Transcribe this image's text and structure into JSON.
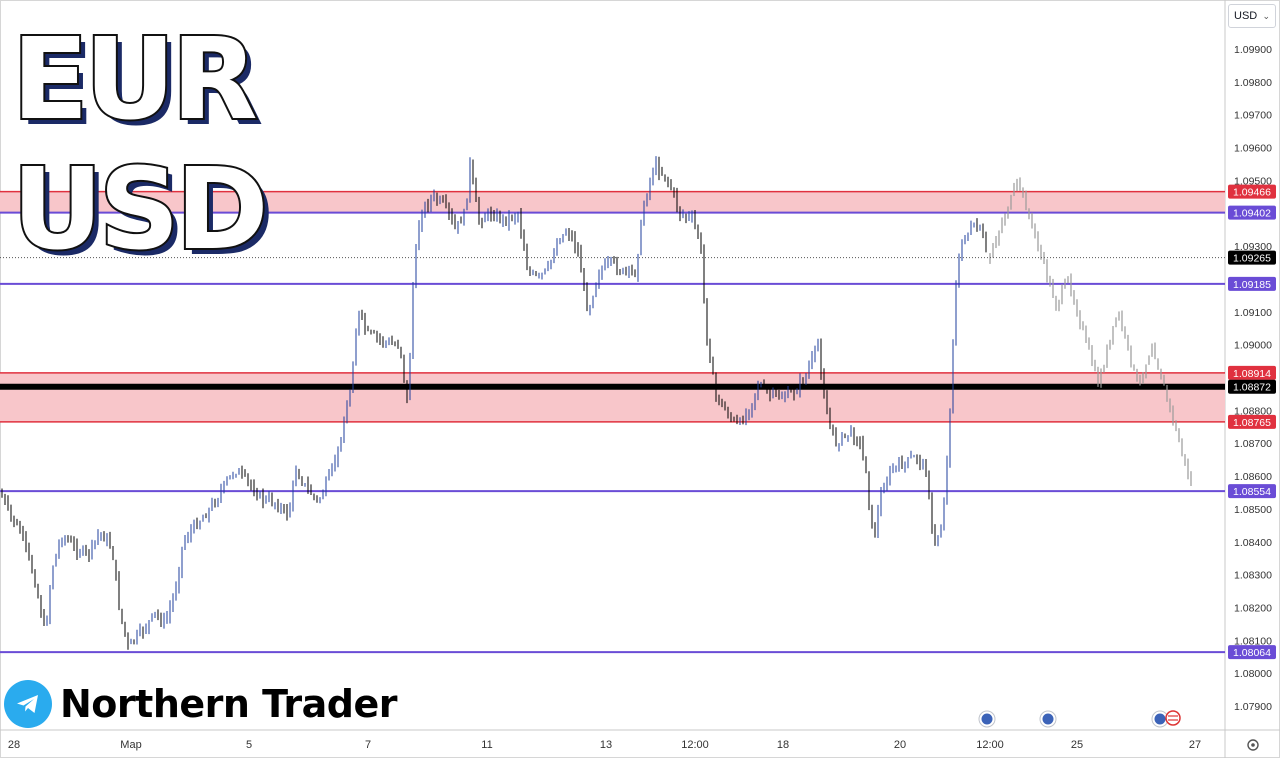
{
  "title": {
    "line1": "EUR",
    "line2": "USD"
  },
  "currency_select": {
    "value": "USD"
  },
  "brand": {
    "name": "Northern Trader",
    "icon": "telegram-icon"
  },
  "colors": {
    "zone_fill": "#f8c6ca",
    "zone_line": "#e0313f",
    "level_line": "#6a4cd6",
    "candle_up": "#1f3f9c",
    "candle_down": "#000000",
    "projection": "#9a9a9a",
    "current_price_bg": "#000000",
    "axis_text": "#333333"
  },
  "chart_data": {
    "type": "candlestick",
    "symbol": "EURUSD",
    "ylim": [
      1.0785,
      1.1005
    ],
    "y_ticks": [
      "1.09900",
      "1.09800",
      "1.09700",
      "1.09600",
      "1.09500",
      "1.09300",
      "1.09100",
      "1.09000",
      "1.08800",
      "1.08700",
      "1.08600",
      "1.08500",
      "1.08400",
      "1.08300",
      "1.08200",
      "1.08100",
      "1.08000",
      "1.07900"
    ],
    "x_ticks": [
      "28",
      "Мар",
      "5",
      "7",
      "11",
      "13",
      "12:00",
      "18",
      "20",
      "12:00",
      "25",
      "27"
    ],
    "current_price": "1.09265",
    "levels": [
      {
        "price": 1.09466,
        "label": "1.09466",
        "kind": "zone"
      },
      {
        "price": 1.09402,
        "label": "1.09402",
        "kind": "line"
      },
      {
        "price": 1.09185,
        "label": "1.09185",
        "kind": "line"
      },
      {
        "price": 1.08914,
        "label": "1.08914",
        "kind": "zone"
      },
      {
        "price": 1.08872,
        "label": "1.08872",
        "kind": "bold"
      },
      {
        "price": 1.08765,
        "label": "1.08765",
        "kind": "zone"
      },
      {
        "price": 1.08554,
        "label": "1.08554",
        "kind": "line"
      },
      {
        "price": 1.08064,
        "label": "1.08064",
        "kind": "line"
      }
    ],
    "zones": [
      {
        "from": 1.09402,
        "to": 1.09466
      },
      {
        "from": 1.08765,
        "to": 1.08914
      }
    ],
    "price_path": [
      [
        0,
        1.0855
      ],
      [
        10,
        1.0848
      ],
      [
        22,
        1.0842
      ],
      [
        35,
        1.0828
      ],
      [
        45,
        1.0812
      ],
      [
        52,
        1.0832
      ],
      [
        62,
        1.0842
      ],
      [
        75,
        1.0838
      ],
      [
        88,
        1.0836
      ],
      [
        100,
        1.0843
      ],
      [
        112,
        1.0838
      ],
      [
        120,
        1.0818
      ],
      [
        128,
        1.0808
      ],
      [
        140,
        1.0812
      ],
      [
        155,
        1.0818
      ],
      [
        165,
        1.0815
      ],
      [
        175,
        1.0825
      ],
      [
        183,
        1.084
      ],
      [
        195,
        1.0845
      ],
      [
        210,
        1.085
      ],
      [
        222,
        1.0856
      ],
      [
        235,
        1.0862
      ],
      [
        248,
        1.0858
      ],
      [
        262,
        1.0853
      ],
      [
        275,
        1.0852
      ],
      [
        288,
        1.0848
      ],
      [
        296,
        1.0862
      ],
      [
        305,
        1.0857
      ],
      [
        318,
        1.0852
      ],
      [
        330,
        1.086
      ],
      [
        340,
        1.087
      ],
      [
        350,
        1.0886
      ],
      [
        358,
        1.091
      ],
      [
        368,
        1.0903
      ],
      [
        378,
        1.0902
      ],
      [
        390,
        1.09
      ],
      [
        400,
        1.09
      ],
      [
        408,
        1.088
      ],
      [
        412,
        1.0915
      ],
      [
        420,
        1.094
      ],
      [
        432,
        1.0945
      ],
      [
        445,
        1.0942
      ],
      [
        455,
        1.0935
      ],
      [
        465,
        1.094
      ],
      [
        470,
        1.0955
      ],
      [
        478,
        1.0938
      ],
      [
        490,
        1.094
      ],
      [
        505,
        1.0938
      ],
      [
        518,
        1.094
      ],
      [
        528,
        1.0922
      ],
      [
        538,
        1.092
      ],
      [
        548,
        1.0923
      ],
      [
        558,
        1.0932
      ],
      [
        568,
        1.0935
      ],
      [
        578,
        1.0928
      ],
      [
        588,
        1.091
      ],
      [
        598,
        1.0922
      ],
      [
        612,
        1.0925
      ],
      [
        622,
        1.0922
      ],
      [
        635,
        1.0922
      ],
      [
        645,
        1.0945
      ],
      [
        655,
        1.0955
      ],
      [
        668,
        1.095
      ],
      [
        680,
        1.094
      ],
      [
        692,
        1.0938
      ],
      [
        700,
        1.0932
      ],
      [
        706,
        1.0905
      ],
      [
        715,
        1.0885
      ],
      [
        725,
        1.088
      ],
      [
        738,
        1.0875
      ],
      [
        748,
        1.088
      ],
      [
        758,
        1.0888
      ],
      [
        768,
        1.0885
      ],
      [
        780,
        1.0884
      ],
      [
        792,
        1.0885
      ],
      [
        805,
        1.089
      ],
      [
        818,
        1.09
      ],
      [
        826,
        1.088
      ],
      [
        835,
        1.087
      ],
      [
        848,
        1.0873
      ],
      [
        858,
        1.0872
      ],
      [
        866,
        1.0862
      ],
      [
        873,
        1.084
      ],
      [
        882,
        1.0856
      ],
      [
        892,
        1.0862
      ],
      [
        905,
        1.0864
      ],
      [
        918,
        1.0866
      ],
      [
        928,
        1.086
      ],
      [
        933,
        1.0838
      ],
      [
        942,
        1.0845
      ],
      [
        948,
        1.0868
      ],
      [
        955,
        1.0915
      ],
      [
        962,
        1.0932
      ],
      [
        970,
        1.0935
      ],
      [
        980,
        1.0935
      ],
      [
        988,
        1.0926
      ]
    ],
    "projection_path": [
      [
        988,
        1.0926
      ],
      [
        1018,
        1.095
      ],
      [
        1056,
        1.0912
      ],
      [
        1068,
        1.092
      ],
      [
        1098,
        1.0888
      ],
      [
        1118,
        1.091
      ],
      [
        1138,
        1.0887
      ],
      [
        1152,
        1.09
      ],
      [
        1193,
        1.0855
      ]
    ]
  }
}
